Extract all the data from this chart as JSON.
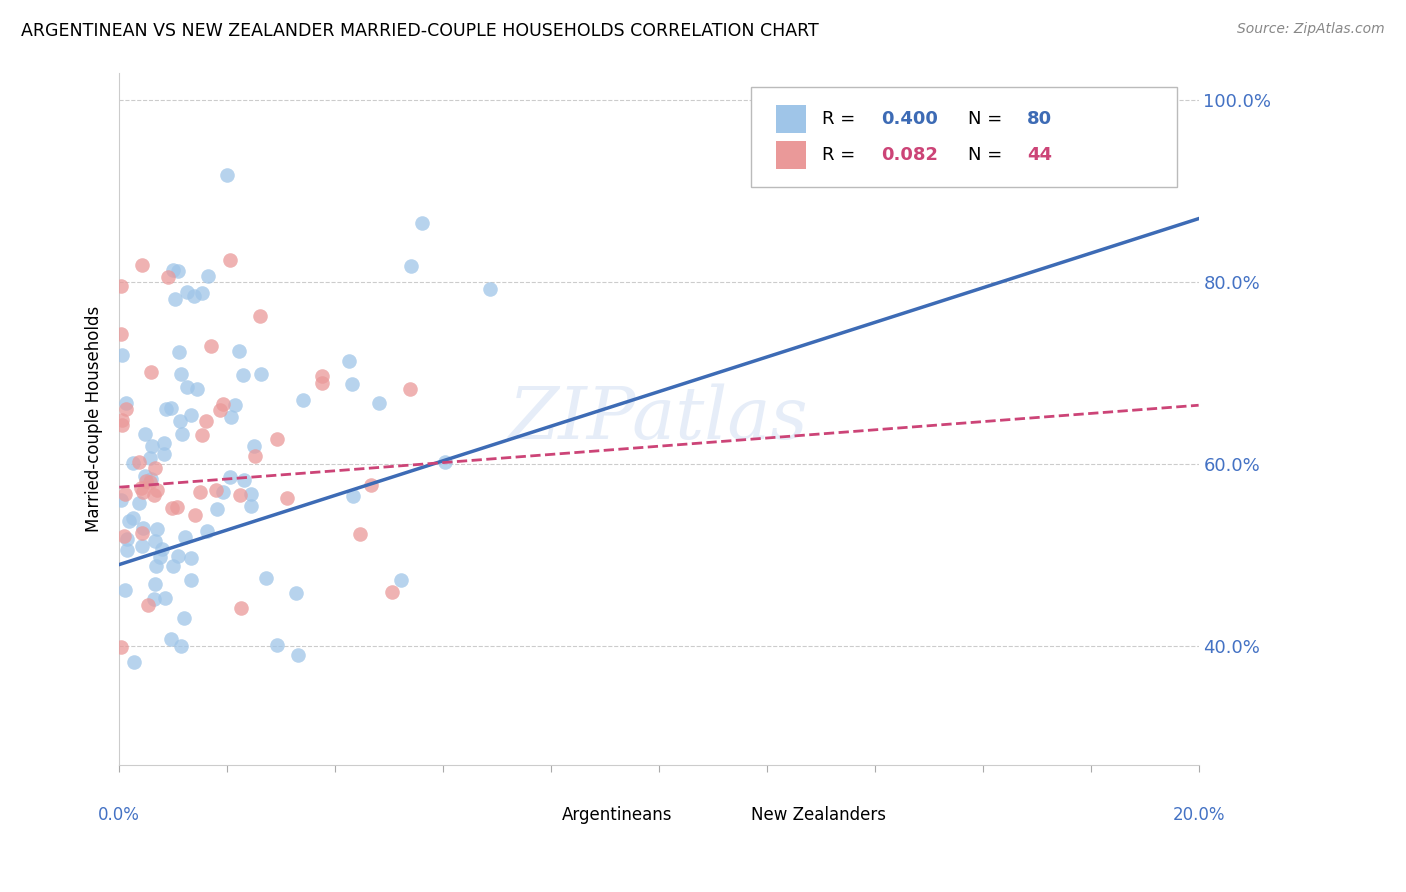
{
  "title": "ARGENTINEAN VS NEW ZEALANDER MARRIED-COUPLE HOUSEHOLDS CORRELATION CHART",
  "source": "Source: ZipAtlas.com",
  "ylabel": "Married-couple Households",
  "R_blue": 0.4,
  "N_blue": 80,
  "R_pink": 0.082,
  "N_pink": 44,
  "color_blue": "#9fc5e8",
  "color_pink": "#ea9999",
  "line_blue": "#3d6bb5",
  "line_pink": "#cc4477",
  "legend_label_blue": "Argentineans",
  "legend_label_pink": "New Zealanders",
  "watermark": "ZIPatlas",
  "xlim": [
    0.0,
    0.2
  ],
  "ylim": [
    0.27,
    1.03
  ],
  "ytick_vals": [
    0.4,
    0.6,
    0.8,
    1.0
  ],
  "ytick_labels": [
    "40.0%",
    "60.0%",
    "80.0%",
    "100.0%"
  ],
  "blue_line_x": [
    0.0,
    0.2
  ],
  "blue_line_y": [
    0.49,
    0.87
  ],
  "pink_line_x": [
    0.0,
    0.2
  ],
  "pink_line_y": [
    0.575,
    0.665
  ]
}
